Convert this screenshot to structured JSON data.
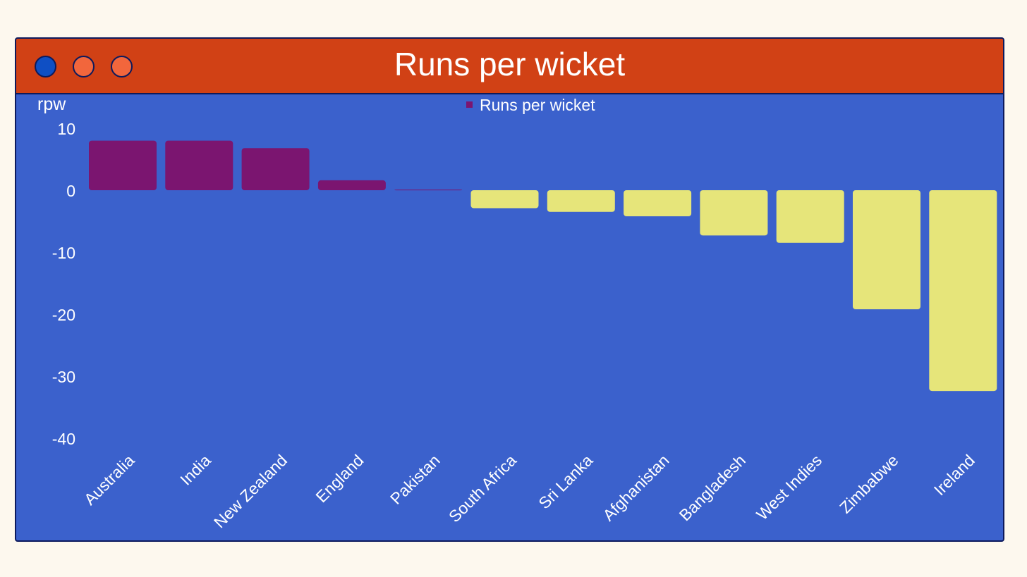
{
  "window": {
    "title": "Runs per wicket",
    "buttons": [
      {
        "name": "close",
        "color": "#0f4fc4"
      },
      {
        "name": "minimize",
        "color": "#f2663c"
      },
      {
        "name": "maximize",
        "color": "#f2663c"
      }
    ]
  },
  "colors": {
    "page_background": "#fdf8ee",
    "plot_background": "#3b61cc",
    "titlebar": "#d14115",
    "border": "#0d1a5c",
    "positive": "#7b1570",
    "negative": "#e6e57a",
    "text": "#ffffff"
  },
  "chart_data": {
    "type": "bar",
    "title": "Runs per wicket",
    "xlabel": "",
    "ylabel": "rpw",
    "ylim": [
      -40,
      10
    ],
    "yticks": [
      10,
      0,
      -10,
      -20,
      -30,
      -40
    ],
    "grid": false,
    "legend": {
      "position": "top-center",
      "entries": [
        "Runs per wicket"
      ]
    },
    "categories": [
      "Australia",
      "India",
      "New Zealand",
      "England",
      "Pakistan",
      "South Africa",
      "Sri Lanka",
      "Afghanistan",
      "Bangladesh",
      "West Indies",
      "Zimbabwe",
      "Ireland"
    ],
    "series": [
      {
        "name": "Runs per wicket",
        "values": [
          8.0,
          8.0,
          6.8,
          1.6,
          0.1,
          -2.9,
          -3.5,
          -4.2,
          -7.3,
          -8.5,
          -19.2,
          -32.4
        ]
      }
    ]
  }
}
